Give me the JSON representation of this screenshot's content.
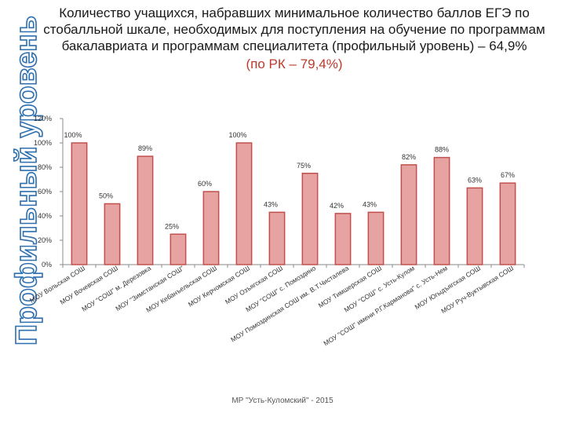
{
  "side_label": "Профильный уровень",
  "title": {
    "lines": [
      "Количество учащихся, набравших минимальное количество баллов ЕГЭ по",
      "стобалльной шкале, необходимых для поступления на обучение по программам",
      "бакалавриата и программам специалитета (профильный уровень) – 64,9%"
    ],
    "subtitle": "(по РК – 79,4%)"
  },
  "footer": "МР \"Усть-Куломский\" - 2015",
  "chart_data": {
    "type": "bar",
    "categories": [
      "МОУ Вольская СОШ",
      "МОУ Вочевская СОШ",
      "МОУ \"СОШ\" м. Дерезовка",
      "МОУ \"Зимстанская СОШ\"",
      "МОУ Кебанъельская СОШ",
      "МОУ Керчомская СОШ",
      "МОУ Озъягская СОШ",
      "МОУ \"СОШ\" с. Помоздино",
      "МОУ Помоздинская СОШ им. В.Т.Чисталева",
      "МОУ Тимшерская СОШ",
      "МОУ \"СОШ\" с. Усть-Кулом",
      "МОУ \"СОШ\" имени Р.Г.Карманова\" с. Усть-Нем",
      "МОУ Югыдъягская СОШ",
      "МОУ Руч-Вуктывская СОШ"
    ],
    "values": [
      100,
      50,
      89,
      25,
      60,
      100,
      43,
      75,
      42,
      43,
      82,
      88,
      63,
      67
    ],
    "data_labels": [
      "100%",
      "50%",
      "89%",
      "25%",
      "60%",
      "100%",
      "43%",
      "75%",
      "42%",
      "43%",
      "82%",
      "88%",
      "63%",
      "67%"
    ],
    "ylim": [
      0,
      120
    ],
    "yticks": [
      0,
      20,
      40,
      60,
      80,
      100,
      120
    ],
    "ytick_labels": [
      "0%",
      "20%",
      "40%",
      "60%",
      "80%",
      "100%",
      "120%"
    ],
    "grid": false,
    "bar_color": "#c0504d",
    "bar_fill": "#e7a3a1"
  }
}
